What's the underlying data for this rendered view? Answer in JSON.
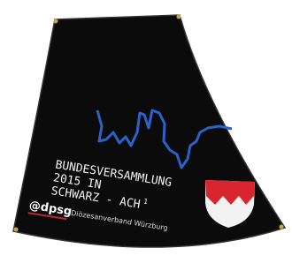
{
  "banner": {
    "title_lines": [
      "BUNDESVERSAMMLUNG",
      "2015 IN",
      "SCHWARZ - ACH"
    ],
    "superscript": "1",
    "logo": "@dpsg",
    "org": "Diözesanverband Würzburg"
  }
}
